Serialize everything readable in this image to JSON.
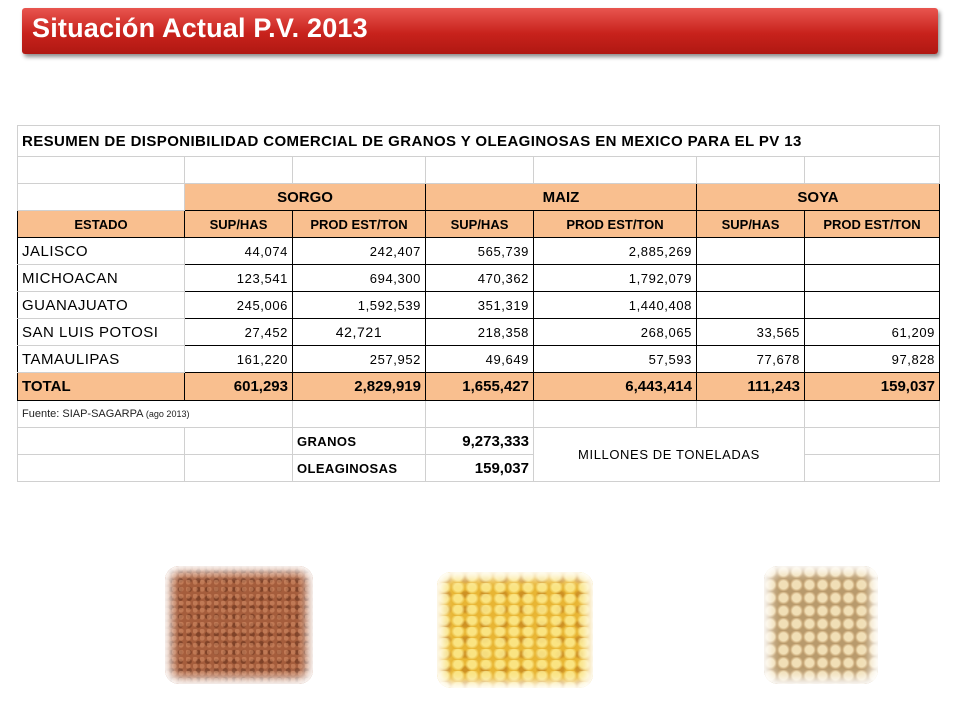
{
  "slide": {
    "title": "Situación Actual P.V. 2013"
  },
  "table": {
    "heading": "RESUMEN DE DISPONIBILIDAD COMERCIAL DE GRANOS Y OLEAGINOSAS EN MEXICO PARA EL PV 13",
    "group_headers": [
      "SORGO",
      "MAIZ",
      "SOYA"
    ],
    "columns": [
      "ESTADO",
      "SUP/HAS",
      "PROD EST/TON",
      "SUP/HAS",
      "PROD EST/TON",
      "SUP/HAS",
      "PROD EST/TON"
    ],
    "rows": [
      {
        "estado": "JALISCO",
        "sorgo_sup": "44,074",
        "sorgo_prod": "242,407",
        "maiz_sup": "565,739",
        "maiz_prod": "2,885,269",
        "soya_sup": "",
        "soya_prod": ""
      },
      {
        "estado": "MICHOACAN",
        "sorgo_sup": "123,541",
        "sorgo_prod": "694,300",
        "maiz_sup": "470,362",
        "maiz_prod": "1,792,079",
        "soya_sup": "",
        "soya_prod": ""
      },
      {
        "estado": "GUANAJUATO",
        "sorgo_sup": "245,006",
        "sorgo_prod": "1,592,539",
        "maiz_sup": "351,319",
        "maiz_prod": "1,440,408",
        "soya_sup": "",
        "soya_prod": ""
      },
      {
        "estado": "SAN LUIS POTOSI",
        "sorgo_sup": "27,452",
        "sorgo_prod": "42,721",
        "maiz_sup": "218,358",
        "maiz_prod": "268,065",
        "soya_sup": "33,565",
        "soya_prod": "61,209"
      },
      {
        "estado": "TAMAULIPAS",
        "sorgo_sup": "161,220",
        "sorgo_prod": "257,952",
        "maiz_sup": "49,649",
        "maiz_prod": "57,593",
        "soya_sup": "77,678",
        "soya_prod": "97,828"
      }
    ],
    "total": {
      "label": "TOTAL",
      "sorgo_sup": "601,293",
      "sorgo_prod": "2,829,919",
      "maiz_sup": "1,655,427",
      "maiz_prod": "6,443,414",
      "soya_sup": "111,243",
      "soya_prod": "159,037"
    },
    "source": {
      "label": "Fuente: SIAP-SAGARPA",
      "date": "(ago 2013)"
    },
    "summary": {
      "granos_label": "GRANOS",
      "granos_value": "9,273,333",
      "oleaginosas_label": "OLEAGINOSAS",
      "oleaginosas_value": "159,037",
      "units": "MILLONES DE TONELADAS"
    }
  },
  "images": [
    {
      "name": "sorgo-grain-photo"
    },
    {
      "name": "maiz-grain-photo"
    },
    {
      "name": "soya-bean-photo"
    }
  ]
}
